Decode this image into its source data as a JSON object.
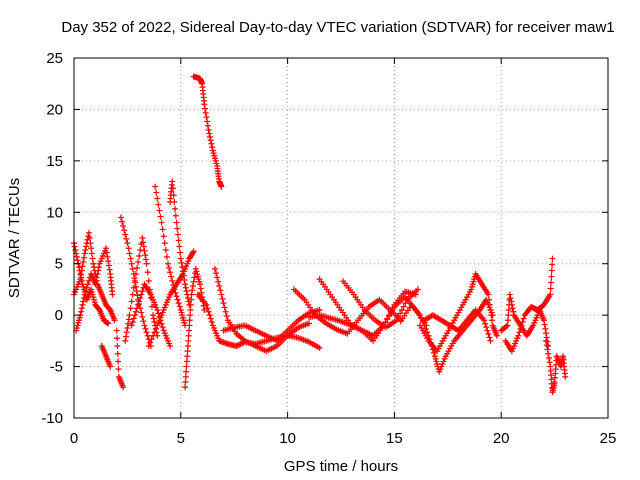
{
  "chart_data": {
    "type": "scatter",
    "title": "Day 352 of 2022, Sidereal Day-to-day VTEC variation (SDTVAR) for receiver maw1",
    "xlabel": "GPS time / hours",
    "ylabel": "SDTVAR / TECUs",
    "xlim": [
      0,
      25
    ],
    "ylim": [
      -10,
      25
    ],
    "xticks": [
      "0",
      "5",
      "10",
      "15",
      "20",
      "25"
    ],
    "yticks": [
      "-10",
      "-5",
      "0",
      "5",
      "10",
      "15",
      "20",
      "25"
    ],
    "grid": true,
    "marker": "+",
    "series_color": "#ff0000",
    "tracks": [
      {
        "name": "track-1",
        "points": [
          [
            0.0,
            7.0
          ],
          [
            0.2,
            5.0
          ],
          [
            0.4,
            3.0
          ],
          [
            0.6,
            1.5
          ],
          [
            0.8,
            2.5
          ],
          [
            1.0,
            1.0
          ],
          [
            1.2,
            0.5
          ],
          [
            1.4,
            -0.5
          ],
          [
            1.6,
            -0.8
          ]
        ]
      },
      {
        "name": "track-2",
        "points": [
          [
            0.0,
            2.0
          ],
          [
            0.3,
            3.5
          ],
          [
            0.5,
            6.0
          ],
          [
            0.7,
            8.0
          ],
          [
            0.9,
            5.0
          ],
          [
            1.1,
            3.0
          ],
          [
            1.3,
            2.0
          ],
          [
            1.5,
            1.0
          ],
          [
            1.7,
            0.5
          ],
          [
            1.9,
            -0.5
          ]
        ]
      },
      {
        "name": "track-3",
        "points": [
          [
            0.1,
            -1.5
          ],
          [
            0.3,
            0.0
          ],
          [
            0.5,
            2.0
          ],
          [
            0.8,
            4.0
          ],
          [
            1.0,
            3.0
          ],
          [
            1.2,
            5.0
          ],
          [
            1.5,
            6.5
          ],
          [
            1.7,
            4.0
          ],
          [
            1.8,
            2.0
          ]
        ]
      },
      {
        "name": "track-4",
        "points": [
          [
            1.3,
            -3.0
          ],
          [
            1.5,
            -4.0
          ],
          [
            1.7,
            -5.0
          ]
        ]
      },
      {
        "name": "track-5",
        "points": [
          [
            2.0,
            -1.5
          ],
          [
            2.1,
            -6.0
          ],
          [
            2.3,
            -7.0
          ]
        ]
      },
      {
        "name": "track-6",
        "points": [
          [
            2.2,
            9.5
          ],
          [
            2.5,
            7.0
          ],
          [
            2.8,
            4.0
          ],
          [
            3.0,
            1.5
          ],
          [
            3.3,
            -1.0
          ],
          [
            3.6,
            -3.0
          ]
        ]
      },
      {
        "name": "track-7",
        "points": [
          [
            2.4,
            -2.5
          ],
          [
            2.6,
            0.0
          ],
          [
            2.9,
            4.0
          ],
          [
            3.2,
            7.5
          ],
          [
            3.4,
            5.0
          ],
          [
            3.7,
            0.0
          ],
          [
            3.9,
            -2.0
          ]
        ]
      },
      {
        "name": "track-8",
        "points": [
          [
            2.7,
            -1.0
          ],
          [
            3.0,
            1.0
          ],
          [
            3.3,
            3.0
          ],
          [
            3.6,
            2.0
          ],
          [
            3.9,
            0.5
          ],
          [
            4.2,
            -1.5
          ],
          [
            4.5,
            -3.0
          ]
        ]
      },
      {
        "name": "track-9",
        "points": [
          [
            3.8,
            12.5
          ],
          [
            4.1,
            9.0
          ],
          [
            4.4,
            5.0
          ],
          [
            4.7,
            2.5
          ],
          [
            5.0,
            0.5
          ],
          [
            5.2,
            -1.0
          ]
        ]
      },
      {
        "name": "track-10",
        "points": [
          [
            4.5,
            11.0
          ],
          [
            4.6,
            13.0
          ],
          [
            4.8,
            9.0
          ],
          [
            5.0,
            5.5
          ],
          [
            5.2,
            3.0
          ],
          [
            5.4,
            1.0
          ]
        ]
      },
      {
        "name": "track-11",
        "points": [
          [
            3.5,
            -3.0
          ],
          [
            3.9,
            -1.0
          ],
          [
            4.2,
            0.5
          ],
          [
            4.5,
            2.0
          ],
          [
            4.8,
            3.0
          ],
          [
            5.1,
            4.0
          ],
          [
            5.4,
            5.5
          ],
          [
            5.6,
            6.2
          ]
        ]
      },
      {
        "name": "track-12",
        "points": [
          [
            5.2,
            -7.0
          ],
          [
            5.3,
            -4.0
          ],
          [
            5.4,
            -1.0
          ],
          [
            5.5,
            2.0
          ],
          [
            5.7,
            4.5
          ],
          [
            5.9,
            3.0
          ],
          [
            6.1,
            0.5
          ]
        ]
      },
      {
        "name": "track-13",
        "points": [
          [
            5.6,
            23.2
          ],
          [
            5.9,
            23.0
          ],
          [
            6.0,
            22.5
          ],
          [
            6.1,
            20.5
          ],
          [
            6.3,
            18.0
          ],
          [
            6.5,
            16.0
          ],
          [
            6.7,
            14.5
          ],
          [
            6.8,
            13.0
          ],
          [
            6.9,
            12.5
          ]
        ]
      },
      {
        "name": "track-14",
        "points": [
          [
            5.8,
            2.0
          ],
          [
            6.2,
            1.0
          ],
          [
            6.5,
            -1.0
          ],
          [
            6.8,
            -2.5
          ],
          [
            7.2,
            -2.8
          ],
          [
            7.6,
            -3.0
          ],
          [
            8.0,
            -2.6
          ],
          [
            8.5,
            -2.8
          ],
          [
            9.0,
            -2.5
          ],
          [
            9.5,
            -2.2
          ],
          [
            10.0,
            -2.0
          ],
          [
            10.5,
            -2.2
          ],
          [
            11.0,
            -2.6
          ],
          [
            11.5,
            -3.2
          ]
        ]
      },
      {
        "name": "track-15",
        "points": [
          [
            6.6,
            4.5
          ],
          [
            6.9,
            2.0
          ],
          [
            7.2,
            -0.5
          ],
          [
            7.6,
            -1.8
          ],
          [
            8.0,
            -2.5
          ],
          [
            8.5,
            -3.0
          ],
          [
            9.0,
            -3.5
          ],
          [
            9.5,
            -3.0
          ],
          [
            10.0,
            -2.0
          ],
          [
            10.5,
            -1.2
          ],
          [
            11.0,
            -0.8
          ]
        ]
      },
      {
        "name": "track-16",
        "points": [
          [
            7.0,
            -1.5
          ],
          [
            7.5,
            -1.2
          ],
          [
            8.0,
            -1.0
          ],
          [
            8.5,
            -1.5
          ],
          [
            9.0,
            -2.0
          ],
          [
            9.5,
            -2.5
          ],
          [
            10.0,
            -1.5
          ],
          [
            10.5,
            -0.5
          ],
          [
            11.0,
            0.2
          ],
          [
            11.5,
            0.5
          ]
        ]
      },
      {
        "name": "track-17",
        "points": [
          [
            10.3,
            2.5
          ],
          [
            10.8,
            1.5
          ],
          [
            11.3,
            0.0
          ],
          [
            11.8,
            -0.8
          ],
          [
            12.3,
            -1.4
          ],
          [
            12.8,
            -1.8
          ],
          [
            13.3,
            -0.5
          ],
          [
            13.8,
            0.8
          ],
          [
            14.3,
            1.5
          ],
          [
            14.8,
            0.5
          ],
          [
            15.3,
            -0.5
          ]
        ]
      },
      {
        "name": "track-18",
        "points": [
          [
            11.5,
            3.5
          ],
          [
            12.0,
            2.0
          ],
          [
            12.5,
            0.5
          ],
          [
            13.0,
            -1.0
          ],
          [
            13.5,
            -1.5
          ],
          [
            14.0,
            -2.0
          ],
          [
            14.5,
            -1.0
          ],
          [
            15.0,
            1.0
          ],
          [
            15.5,
            2.3
          ],
          [
            16.0,
            2.0
          ]
        ]
      },
      {
        "name": "track-19",
        "points": [
          [
            12.6,
            3.3
          ],
          [
            13.1,
            2.0
          ],
          [
            13.6,
            0.5
          ],
          [
            14.1,
            -0.5
          ],
          [
            14.6,
            -1.2
          ],
          [
            15.1,
            -0.5
          ],
          [
            15.6,
            1.5
          ],
          [
            16.1,
            2.5
          ]
        ]
      },
      {
        "name": "track-20",
        "points": [
          [
            11.0,
            -0.2
          ],
          [
            11.5,
            0.0
          ],
          [
            12.0,
            -0.3
          ],
          [
            12.5,
            -0.6
          ],
          [
            13.0,
            -1.0
          ],
          [
            13.5,
            -1.5
          ],
          [
            14.0,
            -2.5
          ],
          [
            14.5,
            -1.0
          ],
          [
            15.0,
            0.8
          ],
          [
            15.5,
            1.8
          ],
          [
            16.0,
            0.5
          ],
          [
            16.5,
            -1.0
          ]
        ]
      },
      {
        "name": "track-21",
        "points": [
          [
            15.3,
            -0.6
          ],
          [
            15.8,
            1.0
          ],
          [
            16.2,
            0.0
          ],
          [
            16.6,
            -2.0
          ],
          [
            16.9,
            -4.0
          ],
          [
            17.1,
            -5.5
          ],
          [
            17.4,
            -4.0
          ],
          [
            17.8,
            -2.5
          ],
          [
            18.2,
            -1.5
          ],
          [
            18.6,
            -0.5
          ],
          [
            19.0,
            0.5
          ],
          [
            19.3,
            1.5
          ],
          [
            19.6,
            0.0
          ]
        ]
      },
      {
        "name": "track-22",
        "points": [
          [
            16.2,
            -1.0
          ],
          [
            16.6,
            -2.5
          ],
          [
            17.0,
            -3.5
          ],
          [
            17.4,
            -2.0
          ],
          [
            17.8,
            -0.5
          ],
          [
            18.2,
            1.0
          ],
          [
            18.6,
            2.5
          ],
          [
            18.8,
            4.0
          ],
          [
            19.1,
            3.0
          ],
          [
            19.4,
            2.0
          ],
          [
            19.6,
            -1.0
          ],
          [
            19.8,
            -2.0
          ]
        ]
      },
      {
        "name": "track-23",
        "points": [
          [
            16.4,
            -0.5
          ],
          [
            16.8,
            0.0
          ],
          [
            17.2,
            -0.5
          ],
          [
            17.6,
            -1.0
          ],
          [
            18.0,
            -1.5
          ],
          [
            18.4,
            -0.5
          ],
          [
            18.8,
            0.5
          ],
          [
            19.2,
            -0.5
          ],
          [
            19.5,
            -2.5
          ]
        ]
      },
      {
        "name": "track-24",
        "points": [
          [
            20.0,
            -1.5
          ],
          [
            20.3,
            -1.0
          ],
          [
            20.4,
            2.0
          ],
          [
            20.6,
            0.0
          ],
          [
            20.9,
            -1.0
          ],
          [
            21.2,
            -2.0
          ],
          [
            21.5,
            -1.0
          ],
          [
            21.8,
            0.5
          ],
          [
            22.0,
            -0.5
          ],
          [
            22.2,
            -3.0
          ]
        ]
      },
      {
        "name": "track-25",
        "points": [
          [
            20.2,
            -2.5
          ],
          [
            20.5,
            -3.5
          ],
          [
            20.8,
            -2.0
          ],
          [
            21.1,
            0.0
          ],
          [
            21.4,
            0.8
          ],
          [
            21.7,
            0.5
          ],
          [
            22.0,
            1.0
          ],
          [
            22.3,
            2.0
          ],
          [
            22.4,
            5.5
          ]
        ]
      },
      {
        "name": "track-26",
        "points": [
          [
            22.1,
            -2.5
          ],
          [
            22.3,
            -5.0
          ],
          [
            22.4,
            -7.5
          ],
          [
            22.5,
            -6.5
          ],
          [
            22.6,
            -4.0
          ],
          [
            22.8,
            -5.0
          ],
          [
            22.9,
            -4.0
          ],
          [
            23.0,
            -6.0
          ]
        ]
      }
    ]
  }
}
